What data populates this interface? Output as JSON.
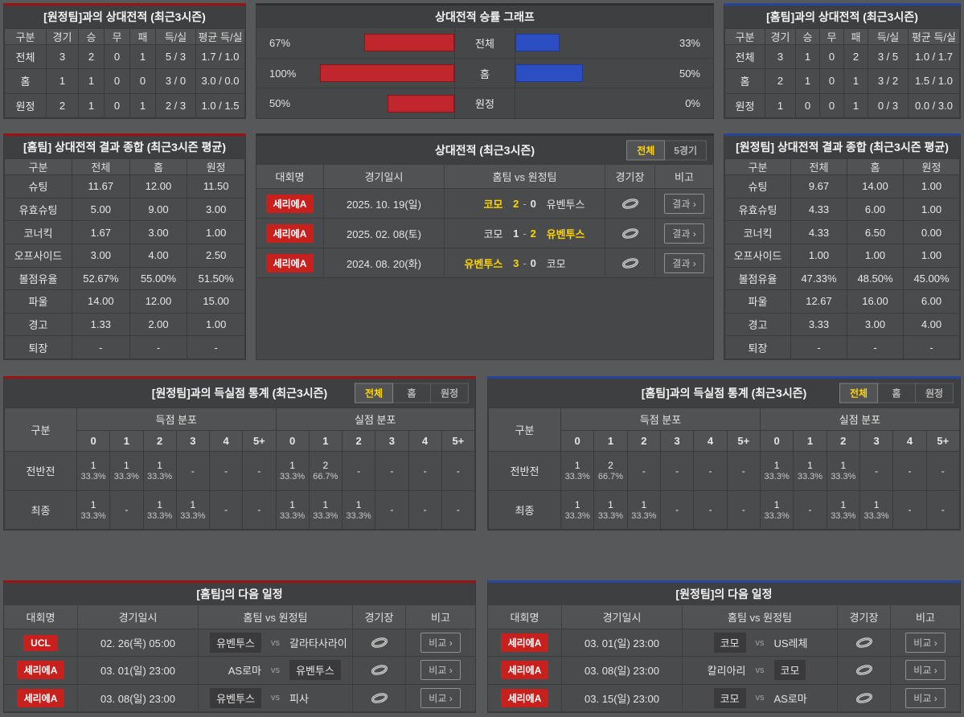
{
  "colors": {
    "home_accent_red": "#9c1113",
    "away_accent_blue": "#28459c",
    "bar_red": "#c0272c",
    "bar_red_border": "#87151a",
    "bar_blue": "#2b4fc2",
    "bar_blue_border": "#1d3a96",
    "badge_red": "#c8201d",
    "highlight_yellow": "#ffd400"
  },
  "vs_away_record": {
    "title": "[원정팀]과의 상대전적 (최근3시즌)",
    "headers": [
      "구분",
      "경기",
      "승",
      "무",
      "패",
      "득/실",
      "평균 득/실"
    ],
    "rows": [
      [
        "전체",
        "3",
        "2",
        "0",
        "1",
        "5 / 3",
        "1.7 / 1.0"
      ],
      [
        "홈",
        "1",
        "1",
        "0",
        "0",
        "3 / 0",
        "3.0 / 0.0"
      ],
      [
        "원정",
        "2",
        "1",
        "0",
        "1",
        "2 / 3",
        "1.0 / 1.5"
      ]
    ]
  },
  "win_rate_chart": {
    "title": "상대전적 승률 그래프",
    "rows": [
      {
        "label": "전체",
        "home_pct_label": "67%",
        "home_pct": 67,
        "away_pct_label": "33%",
        "away_pct": 33
      },
      {
        "label": "홈",
        "home_pct_label": "100%",
        "home_pct": 100,
        "away_pct_label": "50%",
        "away_pct": 50
      },
      {
        "label": "원정",
        "home_pct_label": "50%",
        "home_pct": 50,
        "away_pct_label": "0%",
        "away_pct": 0
      }
    ]
  },
  "vs_home_record": {
    "title": "[홈팀]과의 상대전적 (최근3시즌)",
    "headers": [
      "구분",
      "경기",
      "승",
      "무",
      "패",
      "득/실",
      "평균 득/실"
    ],
    "rows": [
      [
        "전체",
        "3",
        "1",
        "0",
        "2",
        "3 / 5",
        "1.0 / 1.7"
      ],
      [
        "홈",
        "2",
        "1",
        "0",
        "1",
        "3 / 2",
        "1.5 / 1.0"
      ],
      [
        "원정",
        "1",
        "0",
        "0",
        "1",
        "0 / 3",
        "0.0 / 3.0"
      ]
    ]
  },
  "home_summary": {
    "title": "[홈팀] 상대전적 결과 종합 (최근3시즌 평균)",
    "headers": [
      "구분",
      "전체",
      "홈",
      "원정"
    ],
    "rows": [
      [
        "슈팅",
        "11.67",
        "12.00",
        "11.50"
      ],
      [
        "유효슈팅",
        "5.00",
        "9.00",
        "3.00"
      ],
      [
        "코너킥",
        "1.67",
        "3.00",
        "1.00"
      ],
      [
        "오프사이드",
        "3.00",
        "4.00",
        "2.50"
      ],
      [
        "볼점유율",
        "52.67%",
        "55.00%",
        "51.50%"
      ],
      [
        "파울",
        "14.00",
        "12.00",
        "15.00"
      ],
      [
        "경고",
        "1.33",
        "2.00",
        "1.00"
      ],
      [
        "퇴장",
        "-",
        "-",
        "-"
      ]
    ]
  },
  "away_summary": {
    "title": "[원정팀] 상대전적 결과 종합 (최근3시즌 평균)",
    "headers": [
      "구분",
      "전체",
      "홈",
      "원정"
    ],
    "rows": [
      [
        "슈팅",
        "9.67",
        "14.00",
        "1.00"
      ],
      [
        "유효슈팅",
        "4.33",
        "6.00",
        "1.00"
      ],
      [
        "코너킥",
        "4.33",
        "6.50",
        "0.00"
      ],
      [
        "오프사이드",
        "1.00",
        "1.00",
        "1.00"
      ],
      [
        "볼점유율",
        "47.33%",
        "48.50%",
        "45.00%"
      ],
      [
        "파울",
        "12.67",
        "16.00",
        "6.00"
      ],
      [
        "경고",
        "3.33",
        "3.00",
        "4.00"
      ],
      [
        "퇴장",
        "-",
        "-",
        "-"
      ]
    ]
  },
  "h2h_matches": {
    "title": "상대전적 (최근3시즌)",
    "tabs": [
      "전체",
      "5경기"
    ],
    "active_tab": "전체",
    "headers": [
      "대회명",
      "경기일시",
      "홈팀  vs  원정팀",
      "경기장",
      "비고"
    ],
    "button_label": "결과 ›",
    "rows": [
      {
        "league": "세리에A",
        "datetime": "2025. 10. 19(일)",
        "home": "코모",
        "home_win": true,
        "score_home": "2",
        "score_away": "0",
        "away": "유벤투스",
        "away_win": false
      },
      {
        "league": "세리에A",
        "datetime": "2025. 02. 08(토)",
        "home": "코모",
        "home_win": false,
        "score_home": "1",
        "score_away": "2",
        "away": "유벤투스",
        "away_win": true
      },
      {
        "league": "세리에A",
        "datetime": "2024. 08. 20(화)",
        "home": "유벤투스",
        "home_win": true,
        "score_home": "3",
        "score_away": "0",
        "away": "코모",
        "away_win": false
      }
    ]
  },
  "away_goal_stats": {
    "title": "[원정팀]과의 득실점 통계 (최근3시즌)",
    "tabs": [
      "전체",
      "홈",
      "원정"
    ],
    "active_tab": "전체",
    "col_group_label": "구분",
    "scored_label": "득점 분포",
    "conceded_label": "실점 분포",
    "bins": [
      "0",
      "1",
      "2",
      "3",
      "4",
      "5+"
    ],
    "rows": [
      {
        "label": "전반전",
        "scored": [
          {
            "v": "1",
            "p": "33.3%"
          },
          {
            "v": "1",
            "p": "33.3%"
          },
          {
            "v": "1",
            "p": "33.3%"
          },
          {
            "v": "-",
            "p": ""
          },
          {
            "v": "-",
            "p": ""
          },
          {
            "v": "-",
            "p": ""
          }
        ],
        "conceded": [
          {
            "v": "1",
            "p": "33.3%"
          },
          {
            "v": "2",
            "p": "66.7%"
          },
          {
            "v": "-",
            "p": ""
          },
          {
            "v": "-",
            "p": ""
          },
          {
            "v": "-",
            "p": ""
          },
          {
            "v": "-",
            "p": ""
          }
        ]
      },
      {
        "label": "최종",
        "scored": [
          {
            "v": "1",
            "p": "33.3%"
          },
          {
            "v": "-",
            "p": ""
          },
          {
            "v": "1",
            "p": "33.3%"
          },
          {
            "v": "1",
            "p": "33.3%"
          },
          {
            "v": "-",
            "p": ""
          },
          {
            "v": "-",
            "p": ""
          }
        ],
        "conceded": [
          {
            "v": "1",
            "p": "33.3%"
          },
          {
            "v": "1",
            "p": "33.3%"
          },
          {
            "v": "1",
            "p": "33.3%"
          },
          {
            "v": "-",
            "p": ""
          },
          {
            "v": "-",
            "p": ""
          },
          {
            "v": "-",
            "p": ""
          }
        ]
      }
    ]
  },
  "home_goal_stats": {
    "title": "[홈팀]과의 득실점 통계 (최근3시즌)",
    "tabs": [
      "전체",
      "홈",
      "원정"
    ],
    "active_tab": "전체",
    "col_group_label": "구분",
    "scored_label": "득점 분포",
    "conceded_label": "실점 분포",
    "bins": [
      "0",
      "1",
      "2",
      "3",
      "4",
      "5+"
    ],
    "rows": [
      {
        "label": "전반전",
        "scored": [
          {
            "v": "1",
            "p": "33.3%"
          },
          {
            "v": "2",
            "p": "66.7%"
          },
          {
            "v": "-",
            "p": ""
          },
          {
            "v": "-",
            "p": ""
          },
          {
            "v": "-",
            "p": ""
          },
          {
            "v": "-",
            "p": ""
          }
        ],
        "conceded": [
          {
            "v": "1",
            "p": "33.3%"
          },
          {
            "v": "1",
            "p": "33.3%"
          },
          {
            "v": "1",
            "p": "33.3%"
          },
          {
            "v": "-",
            "p": ""
          },
          {
            "v": "-",
            "p": ""
          },
          {
            "v": "-",
            "p": ""
          }
        ]
      },
      {
        "label": "최종",
        "scored": [
          {
            "v": "1",
            "p": "33.3%"
          },
          {
            "v": "1",
            "p": "33.3%"
          },
          {
            "v": "1",
            "p": "33.3%"
          },
          {
            "v": "-",
            "p": ""
          },
          {
            "v": "-",
            "p": ""
          },
          {
            "v": "-",
            "p": ""
          }
        ],
        "conceded": [
          {
            "v": "1",
            "p": "33.3%"
          },
          {
            "v": "-",
            "p": ""
          },
          {
            "v": "1",
            "p": "33.3%"
          },
          {
            "v": "1",
            "p": "33.3%"
          },
          {
            "v": "-",
            "p": ""
          },
          {
            "v": "-",
            "p": ""
          }
        ]
      }
    ]
  },
  "home_schedule": {
    "title": "[홈팀]의 다음 일정",
    "headers": [
      "대회명",
      "경기일시",
      "홈팀  vs  원정팀",
      "경기장",
      "비고"
    ],
    "button_label": "비교 ›",
    "rows": [
      {
        "league": "UCL",
        "datetime": "02. 26(목) 05:00",
        "home": "유벤투스",
        "home_hl": true,
        "away": "갈라타사라이",
        "away_hl": false
      },
      {
        "league": "세리에A",
        "datetime": "03. 01(일) 23:00",
        "home": "AS로마",
        "home_hl": false,
        "away": "유벤투스",
        "away_hl": true
      },
      {
        "league": "세리에A",
        "datetime": "03. 08(일) 23:00",
        "home": "유벤투스",
        "home_hl": true,
        "away": "피사",
        "away_hl": false
      }
    ]
  },
  "away_schedule": {
    "title": "[원정팀]의 다음 일정",
    "headers": [
      "대회명",
      "경기일시",
      "홈팀  vs  원정팀",
      "경기장",
      "비고"
    ],
    "button_label": "비교 ›",
    "rows": [
      {
        "league": "세리에A",
        "datetime": "03. 01(일) 23:00",
        "home": "코모",
        "home_hl": true,
        "away": "US레체",
        "away_hl": false
      },
      {
        "league": "세리에A",
        "datetime": "03. 08(일) 23:00",
        "home": "칼리아리",
        "home_hl": false,
        "away": "코모",
        "away_hl": true
      },
      {
        "league": "세리에A",
        "datetime": "03. 15(일) 23:00",
        "home": "코모",
        "home_hl": true,
        "away": "AS로마",
        "away_hl": false
      }
    ]
  }
}
